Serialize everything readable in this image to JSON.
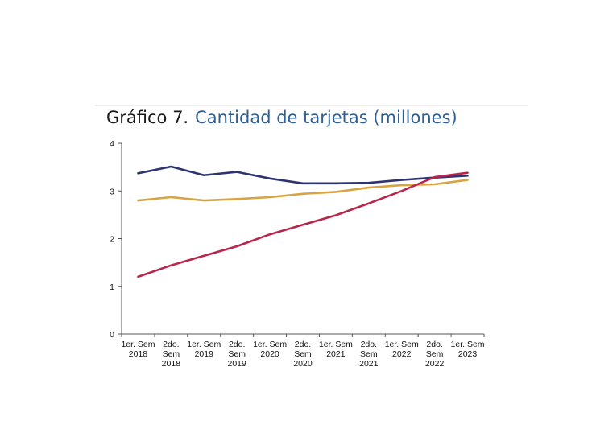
{
  "chart": {
    "number": "Gráfico 7.",
    "title": "Cantidad de tarjetas (millones)"
  },
  "chart_data": {
    "type": "line",
    "title": "Cantidad de tarjetas (millones)",
    "xlabel": "",
    "ylabel": "",
    "ylim": [
      0,
      4
    ],
    "yticks": [
      0,
      1,
      2,
      3,
      4
    ],
    "grid": false,
    "legend": "none",
    "categories": [
      [
        "1er. Sem",
        "2018"
      ],
      [
        "2do.",
        "Sem",
        "2018"
      ],
      [
        "1er. Sem",
        "2019"
      ],
      [
        "2do.",
        "Sem",
        "2019"
      ],
      [
        "1er. Sem",
        "2020"
      ],
      [
        "2do.",
        "Sem",
        "2020"
      ],
      [
        "1er. Sem",
        "2021"
      ],
      [
        "2do.",
        "Sem",
        "2021"
      ],
      [
        "1er. Sem",
        "2022"
      ],
      [
        "2do.",
        "Sem",
        "2022"
      ],
      [
        "1er. Sem",
        "2023"
      ]
    ],
    "series": [
      {
        "color": "#2e3470",
        "values": [
          3.37,
          3.51,
          3.33,
          3.4,
          3.26,
          3.16,
          3.16,
          3.17,
          3.23,
          3.28,
          3.32
        ]
      },
      {
        "color": "#d8a442",
        "values": [
          2.8,
          2.87,
          2.8,
          2.83,
          2.87,
          2.94,
          2.98,
          3.07,
          3.12,
          3.14,
          3.23
        ]
      },
      {
        "color": "#b8264c",
        "values": [
          1.2,
          1.44,
          1.64,
          1.84,
          2.09,
          2.29,
          2.49,
          2.74,
          3.0,
          3.29,
          3.38
        ]
      }
    ]
  }
}
